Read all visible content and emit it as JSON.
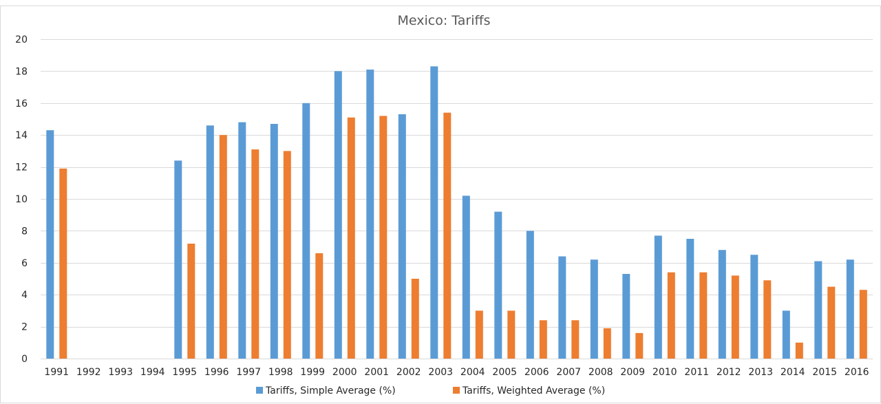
{
  "chart_data": {
    "type": "bar",
    "title": "Mexico: Tariffs",
    "xlabel": "",
    "ylabel": "",
    "ylim": [
      0,
      20
    ],
    "yticks": [
      0,
      2,
      4,
      6,
      8,
      10,
      12,
      14,
      16,
      18,
      20
    ],
    "grid": true,
    "legend_position": "bottom",
    "categories": [
      "1991",
      "1992",
      "1993",
      "1994",
      "1995",
      "1996",
      "1997",
      "1998",
      "1999",
      "2000",
      "2001",
      "2002",
      "2003",
      "2004",
      "2005",
      "2006",
      "2007",
      "2008",
      "2009",
      "2010",
      "2011",
      "2012",
      "2013",
      "2014",
      "2015",
      "2016"
    ],
    "series": [
      {
        "name": "Tariffs, Simple Average (%)",
        "color": "#5b9bd5",
        "values": [
          14.3,
          null,
          null,
          null,
          12.4,
          14.6,
          14.8,
          14.7,
          16.0,
          18.0,
          18.1,
          15.3,
          18.3,
          10.2,
          9.2,
          8.0,
          6.4,
          6.2,
          5.3,
          7.7,
          7.5,
          6.8,
          6.5,
          3.0,
          6.1,
          6.2
        ]
      },
      {
        "name": "Tariffs, Weighted Average (%)",
        "color": "#ed7d31",
        "values": [
          11.9,
          null,
          null,
          null,
          7.2,
          14.0,
          13.1,
          13.0,
          6.6,
          15.1,
          15.2,
          5.0,
          15.4,
          3.0,
          3.0,
          2.4,
          2.4,
          1.9,
          1.6,
          5.4,
          5.4,
          5.2,
          4.9,
          1.0,
          4.5,
          4.3
        ]
      }
    ]
  }
}
